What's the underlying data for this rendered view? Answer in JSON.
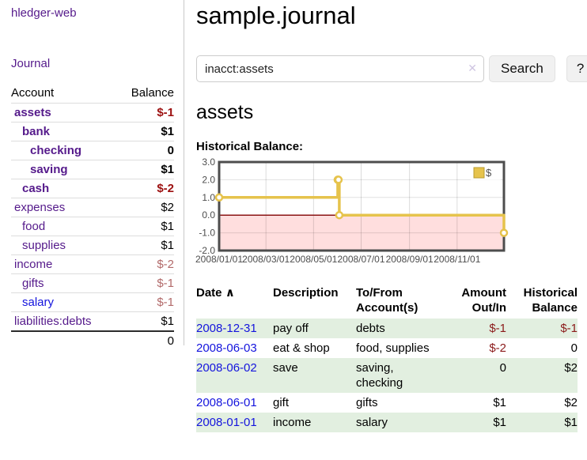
{
  "sidebar": {
    "brand": "hledger-web",
    "journal_link": "Journal",
    "accounts_header": {
      "account": "Account",
      "balance": "Balance"
    },
    "accounts": [
      {
        "name": "assets",
        "balance": "$-1",
        "level": 1,
        "bold": true,
        "balance_tone": "neg-strong",
        "link_tone": "purple"
      },
      {
        "name": "bank",
        "balance": "$1",
        "level": 2,
        "bold": true,
        "balance_tone": "pos",
        "link_tone": "purple"
      },
      {
        "name": "checking",
        "balance": "0",
        "level": 3,
        "bold": true,
        "balance_tone": "pos",
        "link_tone": "purple"
      },
      {
        "name": "saving",
        "balance": "$1",
        "level": 3,
        "bold": true,
        "balance_tone": "pos",
        "link_tone": "purple"
      },
      {
        "name": "cash",
        "balance": "$-2",
        "level": 2,
        "bold": true,
        "balance_tone": "neg-strong",
        "link_tone": "purple"
      },
      {
        "name": "expenses",
        "balance": "$2",
        "level": 1,
        "bold": false,
        "balance_tone": "pos",
        "link_tone": "purple"
      },
      {
        "name": "food",
        "balance": "$1",
        "level": 2,
        "bold": false,
        "balance_tone": "pos",
        "link_tone": "purple"
      },
      {
        "name": "supplies",
        "balance": "$1",
        "level": 2,
        "bold": false,
        "balance_tone": "pos",
        "link_tone": "purple"
      },
      {
        "name": "income",
        "balance": "$-2",
        "level": 1,
        "bold": false,
        "balance_tone": "neg-soft",
        "link_tone": "purple"
      },
      {
        "name": "gifts",
        "balance": "$-1",
        "level": 2,
        "bold": false,
        "balance_tone": "neg-soft",
        "link_tone": "purple"
      },
      {
        "name": "salary",
        "balance": "$-1",
        "level": 2,
        "bold": false,
        "balance_tone": "neg-soft",
        "link_tone": "blue"
      },
      {
        "name": "liabilities:debts",
        "balance": "$1",
        "level": 1,
        "bold": false,
        "balance_tone": "pos",
        "link_tone": "purple"
      }
    ],
    "total": "0"
  },
  "main": {
    "title": "sample.journal",
    "search": {
      "value": "inacct:assets",
      "clear_icon": "✕",
      "button_label": "Search",
      "help_label": "?"
    },
    "account_heading": "assets"
  },
  "chart_data": {
    "type": "line",
    "step": true,
    "title": "Historical Balance:",
    "series": [
      {
        "name": "$",
        "color": "#e6c34c",
        "x_days": [
          0,
          152,
          153,
          154,
          365
        ],
        "values": [
          1,
          2,
          2,
          0,
          -1
        ]
      }
    ],
    "xlim_days": [
      0,
      365
    ],
    "ylim": [
      -2,
      3
    ],
    "yticks": [
      {
        "value": 3,
        "label": "3.0"
      },
      {
        "value": 2,
        "label": "2.0"
      },
      {
        "value": 1,
        "label": "1.0"
      },
      {
        "value": 0,
        "label": "0.0"
      },
      {
        "value": -1,
        "label": "-1.0"
      },
      {
        "value": -2,
        "label": "-2.0"
      }
    ],
    "xticks": [
      {
        "day": 0,
        "label": "2008/01/01"
      },
      {
        "day": 60,
        "label": "2008/03/01"
      },
      {
        "day": 121,
        "label": "2008/05/01"
      },
      {
        "day": 182,
        "label": "2008/07/01"
      },
      {
        "day": 244,
        "label": "2008/09/01"
      },
      {
        "day": 305,
        "label": "2008/11/01"
      }
    ],
    "grid": true,
    "legend_position": "top-right",
    "legend_label": "$",
    "negative_region_fill": "#ffdede",
    "zero_line_color": "#8b1414",
    "border_color": "#4d4d4d"
  },
  "register": {
    "headers": {
      "date": "Date",
      "sort_icon": "∧",
      "description": "Description",
      "accounts_line1": "To/From",
      "accounts_line2": "Account(s)",
      "amount_line1": "Amount",
      "amount_line2": "Out/In",
      "balance_line1": "Historical",
      "balance_line2": "Balance"
    },
    "rows": [
      {
        "date": "2008-12-31",
        "description": "pay off",
        "accounts": "debts",
        "amount": "$-1",
        "amount_neg": true,
        "balance": "$-1",
        "balance_neg": true
      },
      {
        "date": "2008-06-03",
        "description": "eat & shop",
        "accounts": "food, supplies",
        "amount": "$-2",
        "amount_neg": true,
        "balance": "0",
        "balance_neg": false
      },
      {
        "date": "2008-06-02",
        "description": "save",
        "accounts": "saving, checking",
        "amount": "0",
        "amount_neg": false,
        "balance": "$2",
        "balance_neg": false
      },
      {
        "date": "2008-06-01",
        "description": "gift",
        "accounts": "gifts",
        "amount": "$1",
        "amount_neg": false,
        "balance": "$2",
        "balance_neg": false
      },
      {
        "date": "2008-01-01",
        "description": "income",
        "accounts": "salary",
        "amount": "$1",
        "amount_neg": false,
        "balance": "$1",
        "balance_neg": false
      }
    ]
  }
}
